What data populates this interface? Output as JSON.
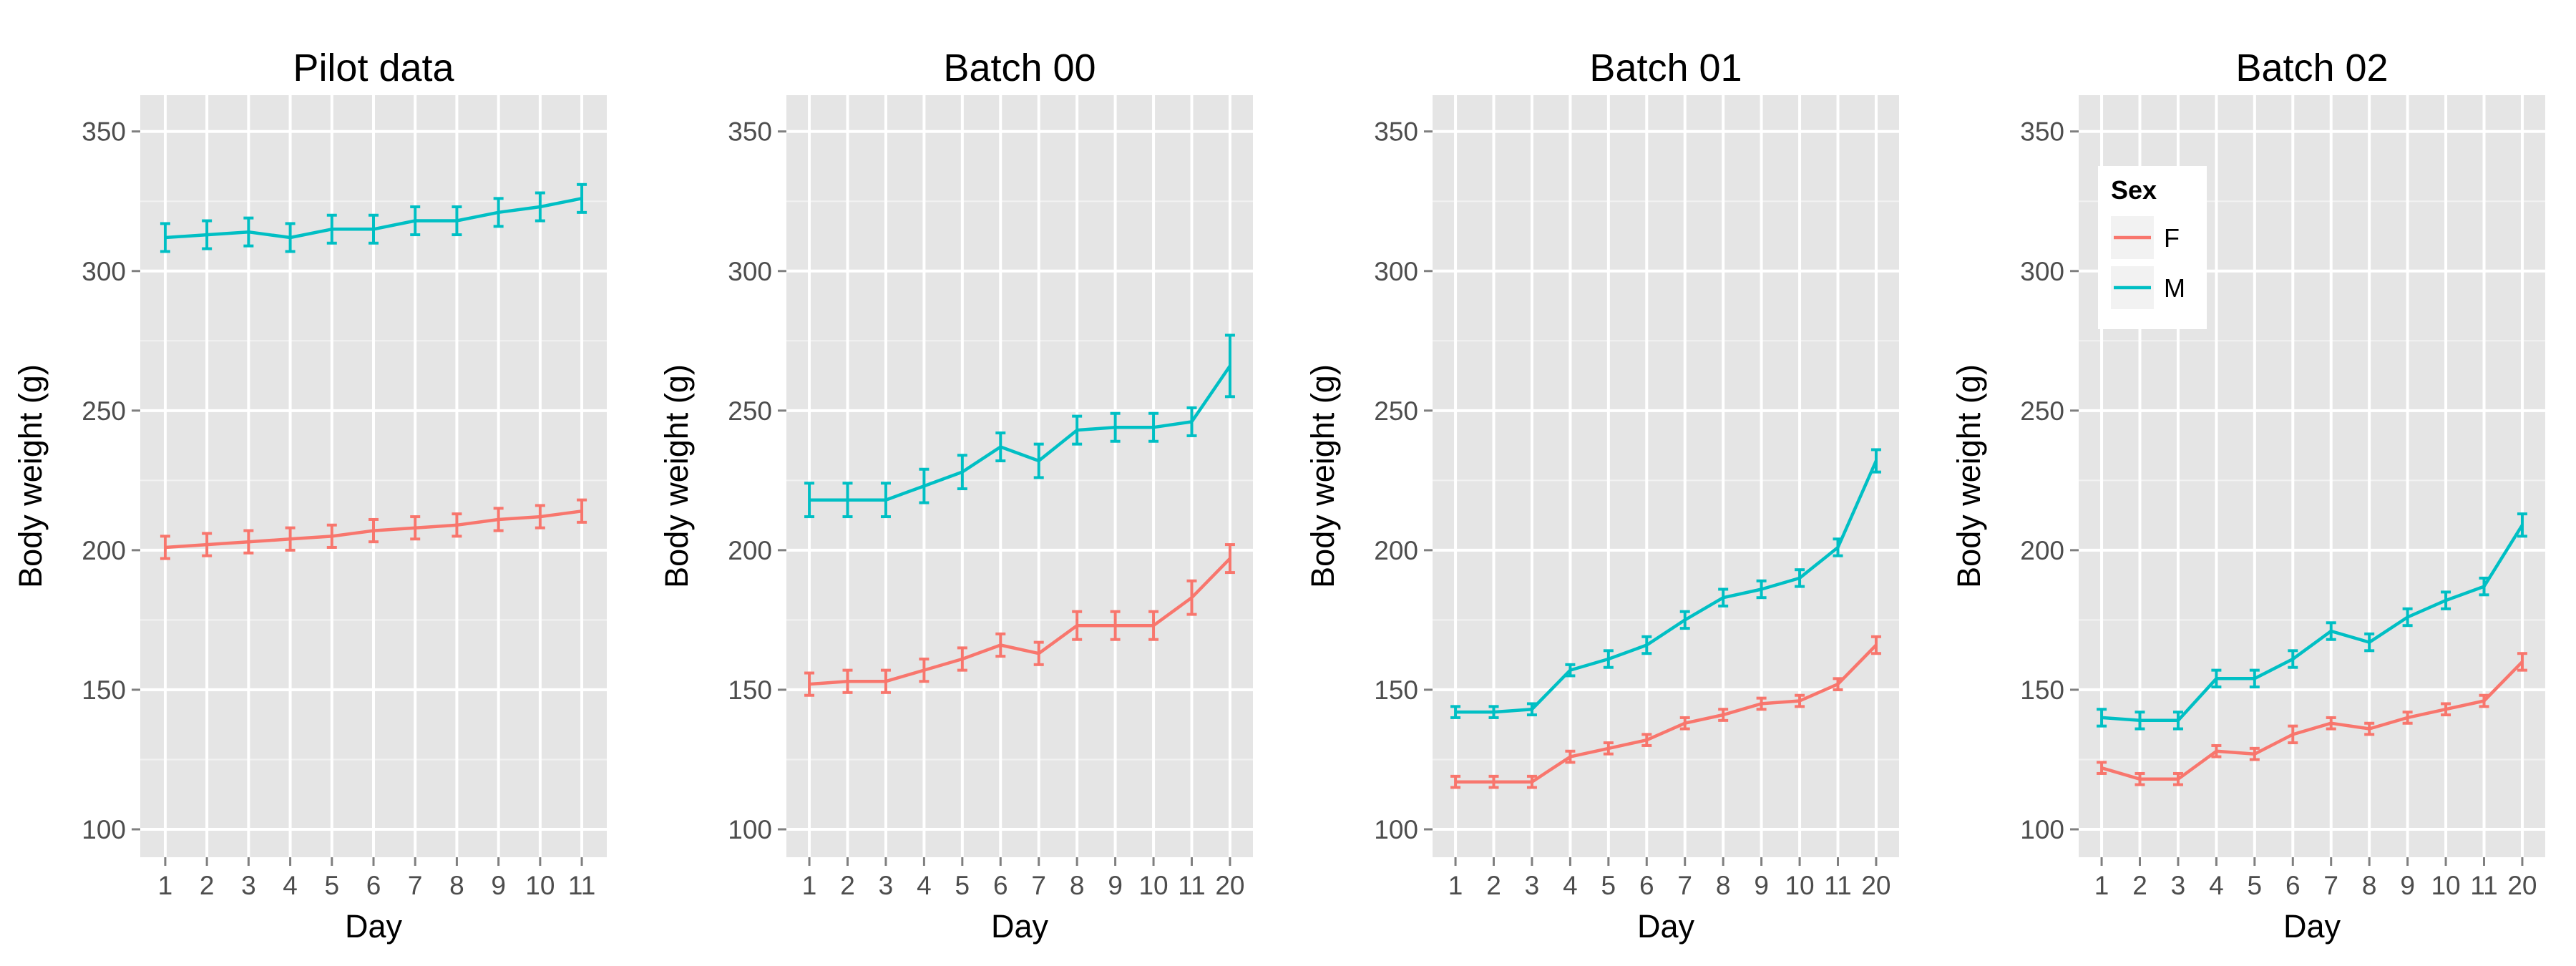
{
  "chart_data": [
    {
      "type": "line",
      "title": "Pilot data",
      "xlabel": "Day",
      "ylabel": "Body weight (g)",
      "ylim": [
        90,
        363
      ],
      "yticks": [
        100,
        150,
        200,
        250,
        300,
        350
      ],
      "categories": [
        "1",
        "2",
        "3",
        "4",
        "5",
        "6",
        "7",
        "8",
        "9",
        "10",
        "11"
      ],
      "grid": true,
      "series": [
        {
          "name": "F",
          "values": [
            201,
            202,
            203,
            204,
            205,
            207,
            208,
            209,
            211,
            212,
            214
          ],
          "errors": [
            4,
            4,
            4,
            4,
            4,
            4,
            4,
            4,
            4,
            4,
            4
          ]
        },
        {
          "name": "M",
          "values": [
            312,
            313,
            314,
            312,
            315,
            315,
            318,
            318,
            321,
            323,
            326
          ],
          "errors": [
            5,
            5,
            5,
            5,
            5,
            5,
            5,
            5,
            5,
            5,
            5
          ]
        }
      ]
    },
    {
      "type": "line",
      "title": "Batch 00",
      "xlabel": "Day",
      "ylabel": "Body weight (g)",
      "ylim": [
        90,
        363
      ],
      "yticks": [
        100,
        150,
        200,
        250,
        300,
        350
      ],
      "categories": [
        "1",
        "2",
        "3",
        "4",
        "5",
        "6",
        "7",
        "8",
        "9",
        "10",
        "11",
        "20"
      ],
      "grid": true,
      "series": [
        {
          "name": "F",
          "values": [
            152,
            153,
            153,
            157,
            161,
            166,
            163,
            173,
            173,
            173,
            183,
            197
          ],
          "errors": [
            4,
            4,
            4,
            4,
            4,
            4,
            4,
            5,
            5,
            5,
            6,
            5
          ]
        },
        {
          "name": "M",
          "values": [
            218,
            218,
            218,
            223,
            228,
            237,
            232,
            243,
            244,
            244,
            246,
            266
          ],
          "errors": [
            6,
            6,
            6,
            6,
            6,
            5,
            6,
            5,
            5,
            5,
            5,
            11
          ]
        }
      ]
    },
    {
      "type": "line",
      "title": "Batch 01",
      "xlabel": "Day",
      "ylabel": "Body weight (g)",
      "ylim": [
        90,
        363
      ],
      "yticks": [
        100,
        150,
        200,
        250,
        300,
        350
      ],
      "categories": [
        "1",
        "2",
        "3",
        "4",
        "5",
        "6",
        "7",
        "8",
        "9",
        "10",
        "11",
        "20"
      ],
      "grid": true,
      "series": [
        {
          "name": "F",
          "values": [
            117,
            117,
            117,
            126,
            129,
            132,
            138,
            141,
            145,
            146,
            152,
            166
          ],
          "errors": [
            2,
            2,
            2,
            2,
            2,
            2,
            2,
            2,
            2,
            2,
            2,
            3
          ]
        },
        {
          "name": "M",
          "values": [
            142,
            142,
            143,
            157,
            161,
            166,
            175,
            183,
            186,
            190,
            201,
            232
          ],
          "errors": [
            2,
            2,
            2,
            2,
            3,
            3,
            3,
            3,
            3,
            3,
            3,
            4
          ]
        }
      ]
    },
    {
      "type": "line",
      "title": "Batch 02",
      "xlabel": "Day",
      "ylabel": "Body weight (g)",
      "ylim": [
        90,
        363
      ],
      "yticks": [
        100,
        150,
        200,
        250,
        300,
        350
      ],
      "categories": [
        "1",
        "2",
        "3",
        "4",
        "5",
        "6",
        "7",
        "8",
        "9",
        "10",
        "11",
        "20"
      ],
      "grid": true,
      "legend": {
        "title": "Sex",
        "position": "top-left"
      },
      "series": [
        {
          "name": "F",
          "values": [
            122,
            118,
            118,
            128,
            127,
            134,
            138,
            136,
            140,
            143,
            146,
            160
          ],
          "errors": [
            2,
            2,
            2,
            2,
            2,
            3,
            2,
            2,
            2,
            2,
            2,
            3
          ]
        },
        {
          "name": "M",
          "values": [
            140,
            139,
            139,
            154,
            154,
            161,
            171,
            167,
            176,
            182,
            187,
            209
          ],
          "errors": [
            3,
            3,
            3,
            3,
            3,
            3,
            3,
            3,
            3,
            3,
            3,
            4
          ]
        }
      ]
    }
  ],
  "colors": {
    "F": "#F8766D",
    "M": "#00BFC4",
    "panel_bg": "#E5E5E5",
    "grid_major": "#FFFFFF",
    "grid_minor": "#F2F2F2",
    "tick_text": "#4D4D4D"
  }
}
